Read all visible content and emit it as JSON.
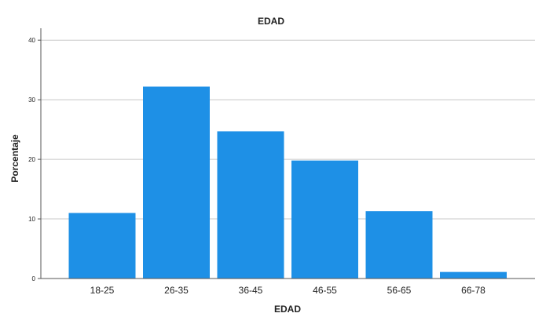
{
  "chart_data": {
    "type": "bar",
    "title": "EDAD",
    "xlabel": "EDAD",
    "ylabel": "Porcentaje",
    "categories": [
      "18-25",
      "26-35",
      "36-45",
      "46-55",
      "56-65",
      "66-78"
    ],
    "values": [
      11.0,
      32.2,
      24.7,
      19.8,
      11.3,
      1.1
    ],
    "ylim": [
      0,
      42
    ],
    "yticks": [
      0,
      10,
      20,
      30,
      40
    ],
    "grid": true,
    "bar_color": "#1E90E6"
  }
}
